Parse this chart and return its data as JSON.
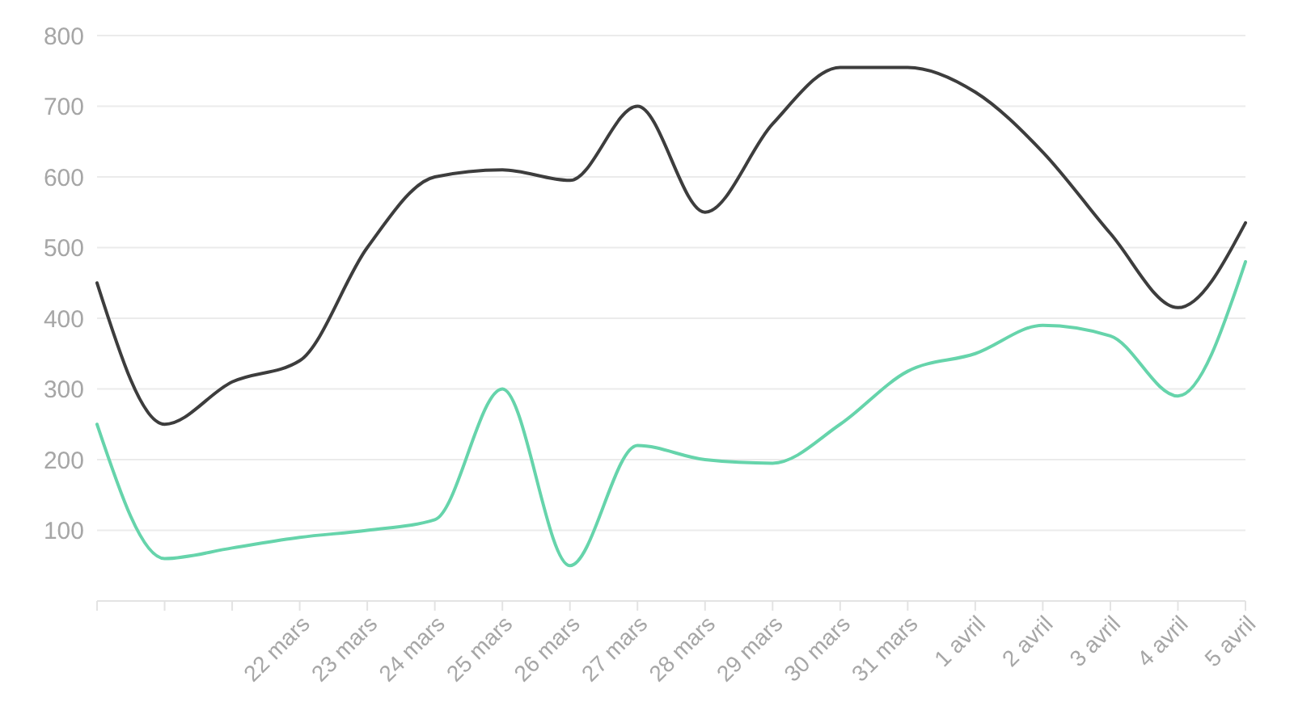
{
  "chart_data": {
    "type": "line",
    "categories": [
      null,
      null,
      null,
      "22 mars",
      "23 mars",
      "24 mars",
      "25 mars",
      "26 mars",
      "27 mars",
      "28 mars",
      "29 mars",
      "30 mars",
      "31 mars",
      "1 avril",
      "2 avril",
      "3 avril",
      "4 avril",
      "5 avril"
    ],
    "series": [
      {
        "color": "#3d3d3d",
        "values": [
          450,
          250,
          310,
          340,
          500,
          600,
          610,
          595,
          700,
          550,
          675,
          755,
          755,
          720,
          635,
          520,
          415,
          535
        ]
      },
      {
        "color": "#66d4ab",
        "values": [
          250,
          60,
          75,
          90,
          100,
          115,
          300,
          50,
          220,
          200,
          195,
          250,
          325,
          350,
          390,
          375,
          290,
          480
        ]
      }
    ],
    "ylim": [
      0,
      800
    ],
    "yticks": [
      100,
      200,
      300,
      400,
      500,
      600,
      700,
      800
    ],
    "grid": "y",
    "marker": "none",
    "line_style": "solid"
  }
}
